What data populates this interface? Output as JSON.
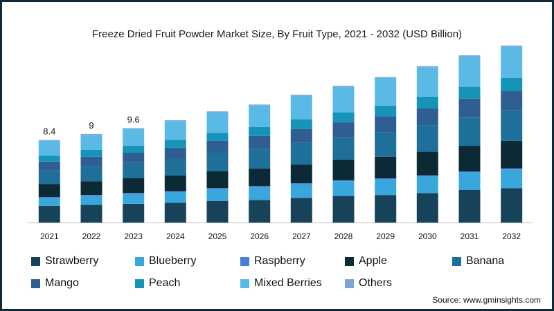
{
  "title": "Freeze Dried Fruit Powder Market Size, By Fruit Type, 2021 - 2032 (USD Billion)",
  "source": "Source: www.gminsights.com",
  "chart_data": {
    "type": "bar",
    "stacked": true,
    "title": "Freeze Dried Fruit Powder Market Size, By Fruit Type, 2021 - 2032 (USD Billion)",
    "xlabel": "",
    "ylabel": "",
    "categories": [
      "2021",
      "2022",
      "2023",
      "2024",
      "2025",
      "2026",
      "2027",
      "2028",
      "2029",
      "2030",
      "2031",
      "2032"
    ],
    "totals_labels": [
      "8.4",
      "9",
      "9.6",
      "",
      "",
      "",
      "",
      "",
      "",
      "",
      "",
      ""
    ],
    "ylim": [
      0,
      17.5
    ],
    "grid": false,
    "legend_position": "bottom",
    "series": [
      {
        "name": "Strawberry",
        "color": "#17435a",
        "values": [
          1.7,
          1.8,
          1.9,
          2.0,
          2.2,
          2.3,
          2.5,
          2.7,
          2.8,
          3.0,
          3.3,
          3.5
        ]
      },
      {
        "name": "Blueberry",
        "color": "#3aa7dc",
        "values": [
          0.8,
          0.9,
          1.0,
          1.1,
          1.2,
          1.3,
          1.4,
          1.5,
          1.6,
          1.7,
          1.8,
          1.9
        ]
      },
      {
        "name": "Raspberry",
        "color": "#4a7fd4",
        "values": [
          0.1,
          0.1,
          0.1,
          0.1,
          0.1,
          0.1,
          0.1,
          0.1,
          0.1,
          0.1,
          0.1,
          0.1
        ]
      },
      {
        "name": "Apple",
        "color": "#0c2a36",
        "values": [
          1.3,
          1.4,
          1.5,
          1.6,
          1.7,
          1.8,
          1.9,
          2.1,
          2.2,
          2.4,
          2.6,
          2.8
        ]
      },
      {
        "name": "Banana",
        "color": "#1e6f9a",
        "values": [
          1.4,
          1.5,
          1.6,
          1.7,
          1.9,
          2.0,
          2.2,
          2.3,
          2.5,
          2.7,
          2.9,
          3.1
        ]
      },
      {
        "name": "Mango",
        "color": "#2f5f92",
        "values": [
          0.9,
          1.0,
          1.0,
          1.1,
          1.2,
          1.3,
          1.4,
          1.5,
          1.6,
          1.7,
          1.9,
          2.0
        ]
      },
      {
        "name": "Peach",
        "color": "#1593b8",
        "values": [
          0.6,
          0.7,
          0.7,
          0.8,
          0.8,
          0.9,
          1.0,
          1.0,
          1.1,
          1.2,
          1.2,
          1.3
        ]
      },
      {
        "name": "Mixed Berries",
        "color": "#5bb9e6",
        "values": [
          1.5,
          1.5,
          1.7,
          1.9,
          2.1,
          2.2,
          2.4,
          2.6,
          2.8,
          3.0,
          3.1,
          3.2
        ]
      },
      {
        "name": "Others",
        "color": "#7fa3d6",
        "values": [
          0.1,
          0.1,
          0.1,
          0.1,
          0.1,
          0.1,
          0.1,
          0.1,
          0.1,
          0.1,
          0.1,
          0.1
        ]
      }
    ]
  },
  "legend": [
    {
      "label": "Strawberry"
    },
    {
      "label": "Blueberry"
    },
    {
      "label": "Raspberry"
    },
    {
      "label": "Apple"
    },
    {
      "label": "Banana"
    },
    {
      "label": "Mango"
    },
    {
      "label": "Peach"
    },
    {
      "label": "Mixed Berries"
    },
    {
      "label": "Others"
    }
  ]
}
